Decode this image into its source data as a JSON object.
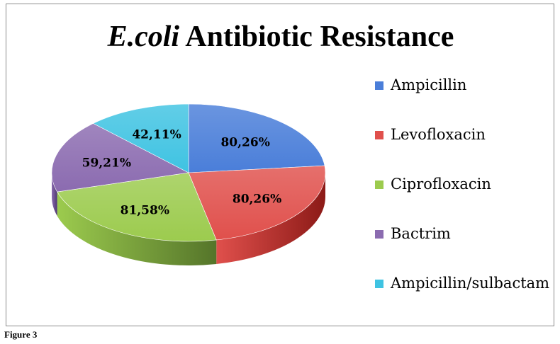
{
  "chart_data": {
    "type": "pie",
    "title_italic": "E.coli",
    "title_rest": " Antibiotic Resistance",
    "slices": [
      {
        "label": "Ampicillin",
        "value": 80.26,
        "data_label": "80,26%",
        "color": "#4a7ed9",
        "dark": "#2e55a0"
      },
      {
        "label": "Levofloxacin",
        "value": 80.26,
        "data_label": "80,26%",
        "color": "#e0504c",
        "dark": "#8c1a17"
      },
      {
        "label": "Ciprofloxacin",
        "value": 81.58,
        "data_label": "81,58%",
        "color": "#9ccb4e",
        "dark": "#55752a"
      },
      {
        "label": "Bactrim",
        "value": 59.21,
        "data_label": "59,21%",
        "color": "#8b6bb0",
        "dark": "#4e3870"
      },
      {
        "label": "Ampicillin/sulbactam",
        "value": 42.11,
        "data_label": "42,11%",
        "color": "#3fc3e2",
        "dark": "#1e7d94"
      }
    ],
    "legend_position": "right"
  },
  "caption": "Figure 3"
}
